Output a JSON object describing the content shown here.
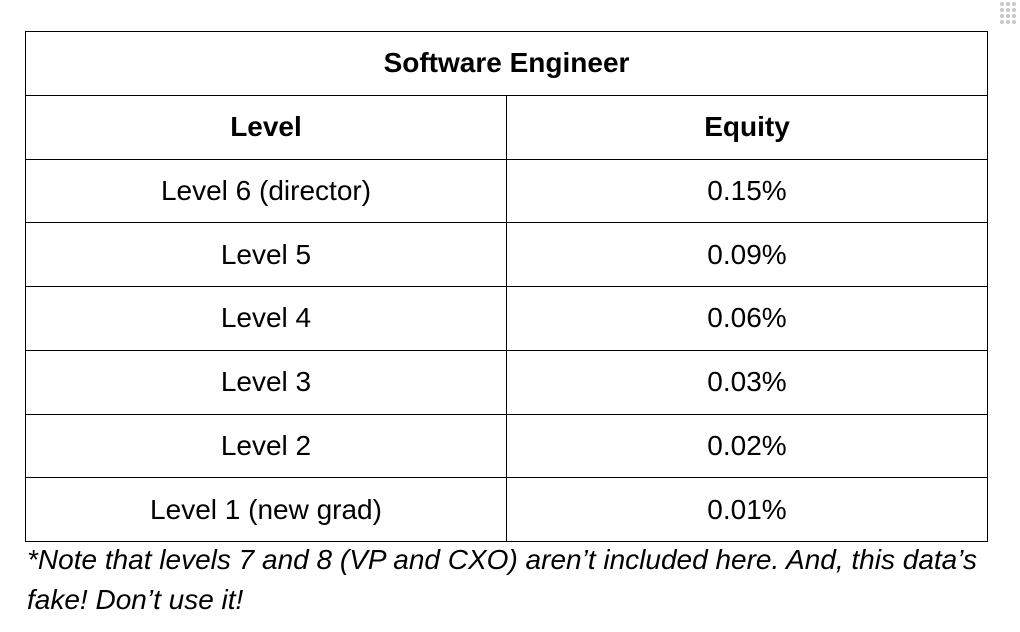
{
  "table": {
    "title": "Software Engineer",
    "headers": [
      "Level",
      "Equity"
    ],
    "rows": [
      {
        "level": "Level 6 (director)",
        "equity": "0.15%"
      },
      {
        "level": "Level 5",
        "equity": "0.09%"
      },
      {
        "level": "Level 4",
        "equity": "0.06%"
      },
      {
        "level": "Level 3",
        "equity": "0.03%"
      },
      {
        "level": "Level 2",
        "equity": "0.02%"
      },
      {
        "level": "Level 1 (new grad)",
        "equity": "0.01%"
      }
    ]
  },
  "footnote": "*Note that levels 7 and 8 (VP and CXO) aren’t included here. And, this data’s fake! Don’t use it!",
  "colors": {
    "border": "#000000",
    "background": "#ffffff",
    "handle": "#c7c7c7"
  },
  "icons": {
    "drag_handle": "drag-handle-icon"
  }
}
